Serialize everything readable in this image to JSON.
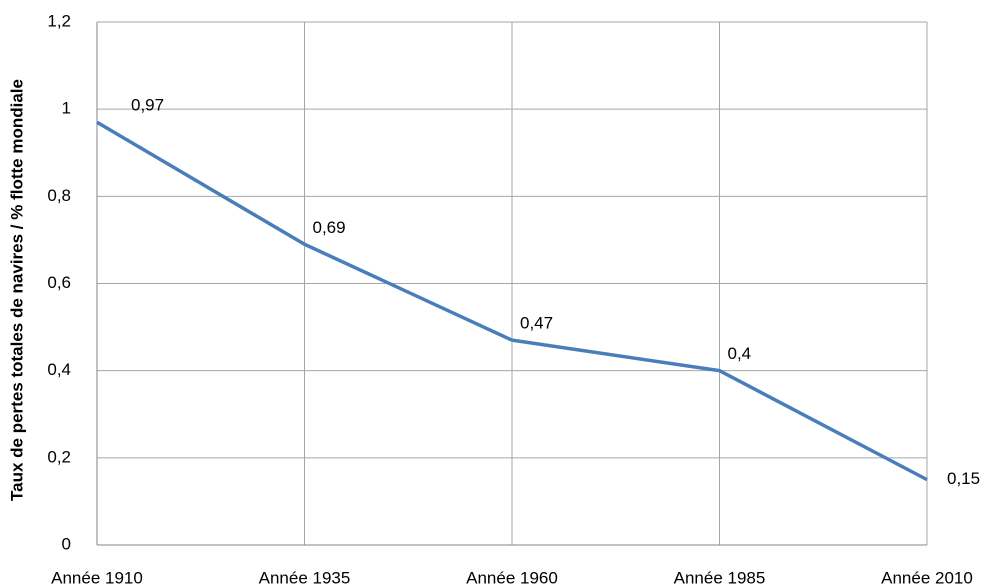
{
  "chart_data": {
    "type": "line",
    "y_label": "Taux de pertes totales de navires / % flotte mondiale",
    "categories": [
      "Année 1910",
      "Année 1935",
      "Année 1960",
      "Année 1985",
      "Année 2010"
    ],
    "series": [
      {
        "name": null,
        "color": "#4a7ebb",
        "values": [
          0.97,
          0.69,
          0.47,
          0.4,
          0.15
        ],
        "value_labels": [
          "0,97",
          "0,69",
          "0,47",
          "0,4",
          "0,15"
        ]
      }
    ],
    "ylim": [
      0,
      1.2
    ],
    "yticks": [
      0,
      {
        "value": 0.2,
        "label": "0,2"
      },
      {
        "value": 0.4,
        "label": "0,4"
      },
      {
        "value": 0.6,
        "label": "0,6"
      },
      {
        "value": 0.8,
        "label": "0,8"
      },
      1,
      {
        "value": 1.2,
        "label": "1,2"
      }
    ],
    "grid": true
  }
}
